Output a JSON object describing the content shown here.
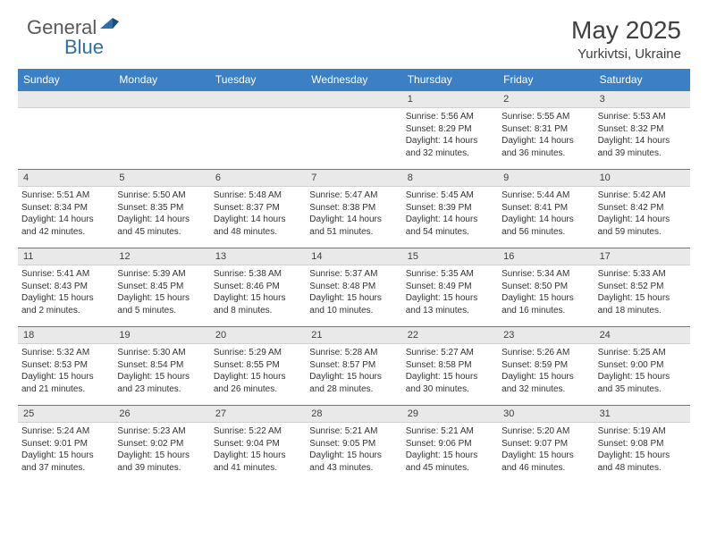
{
  "logo": {
    "text1": "General",
    "text2": "Blue"
  },
  "title": {
    "month": "May 2025",
    "location": "Yurkivtsi, Ukraine"
  },
  "dayNames": [
    "Sunday",
    "Monday",
    "Tuesday",
    "Wednesday",
    "Thursday",
    "Friday",
    "Saturday"
  ],
  "styling": {
    "headerBg": "#3b7fc4",
    "headerText": "#ffffff",
    "dateRowBg": "#e9e9e9",
    "dateRowBorderTop": "#4a80b8",
    "bodyText": "#333333",
    "titleColor": "#404040"
  },
  "weeks": [
    [
      {
        "date": "",
        "lines": []
      },
      {
        "date": "",
        "lines": []
      },
      {
        "date": "",
        "lines": []
      },
      {
        "date": "",
        "lines": []
      },
      {
        "date": "1",
        "lines": [
          "Sunrise: 5:56 AM",
          "Sunset: 8:29 PM",
          "Daylight: 14 hours and 32 minutes."
        ]
      },
      {
        "date": "2",
        "lines": [
          "Sunrise: 5:55 AM",
          "Sunset: 8:31 PM",
          "Daylight: 14 hours and 36 minutes."
        ]
      },
      {
        "date": "3",
        "lines": [
          "Sunrise: 5:53 AM",
          "Sunset: 8:32 PM",
          "Daylight: 14 hours and 39 minutes."
        ]
      }
    ],
    [
      {
        "date": "4",
        "lines": [
          "Sunrise: 5:51 AM",
          "Sunset: 8:34 PM",
          "Daylight: 14 hours and 42 minutes."
        ]
      },
      {
        "date": "5",
        "lines": [
          "Sunrise: 5:50 AM",
          "Sunset: 8:35 PM",
          "Daylight: 14 hours and 45 minutes."
        ]
      },
      {
        "date": "6",
        "lines": [
          "Sunrise: 5:48 AM",
          "Sunset: 8:37 PM",
          "Daylight: 14 hours and 48 minutes."
        ]
      },
      {
        "date": "7",
        "lines": [
          "Sunrise: 5:47 AM",
          "Sunset: 8:38 PM",
          "Daylight: 14 hours and 51 minutes."
        ]
      },
      {
        "date": "8",
        "lines": [
          "Sunrise: 5:45 AM",
          "Sunset: 8:39 PM",
          "Daylight: 14 hours and 54 minutes."
        ]
      },
      {
        "date": "9",
        "lines": [
          "Sunrise: 5:44 AM",
          "Sunset: 8:41 PM",
          "Daylight: 14 hours and 56 minutes."
        ]
      },
      {
        "date": "10",
        "lines": [
          "Sunrise: 5:42 AM",
          "Sunset: 8:42 PM",
          "Daylight: 14 hours and 59 minutes."
        ]
      }
    ],
    [
      {
        "date": "11",
        "lines": [
          "Sunrise: 5:41 AM",
          "Sunset: 8:43 PM",
          "Daylight: 15 hours and 2 minutes."
        ]
      },
      {
        "date": "12",
        "lines": [
          "Sunrise: 5:39 AM",
          "Sunset: 8:45 PM",
          "Daylight: 15 hours and 5 minutes."
        ]
      },
      {
        "date": "13",
        "lines": [
          "Sunrise: 5:38 AM",
          "Sunset: 8:46 PM",
          "Daylight: 15 hours and 8 minutes."
        ]
      },
      {
        "date": "14",
        "lines": [
          "Sunrise: 5:37 AM",
          "Sunset: 8:48 PM",
          "Daylight: 15 hours and 10 minutes."
        ]
      },
      {
        "date": "15",
        "lines": [
          "Sunrise: 5:35 AM",
          "Sunset: 8:49 PM",
          "Daylight: 15 hours and 13 minutes."
        ]
      },
      {
        "date": "16",
        "lines": [
          "Sunrise: 5:34 AM",
          "Sunset: 8:50 PM",
          "Daylight: 15 hours and 16 minutes."
        ]
      },
      {
        "date": "17",
        "lines": [
          "Sunrise: 5:33 AM",
          "Sunset: 8:52 PM",
          "Daylight: 15 hours and 18 minutes."
        ]
      }
    ],
    [
      {
        "date": "18",
        "lines": [
          "Sunrise: 5:32 AM",
          "Sunset: 8:53 PM",
          "Daylight: 15 hours and 21 minutes."
        ]
      },
      {
        "date": "19",
        "lines": [
          "Sunrise: 5:30 AM",
          "Sunset: 8:54 PM",
          "Daylight: 15 hours and 23 minutes."
        ]
      },
      {
        "date": "20",
        "lines": [
          "Sunrise: 5:29 AM",
          "Sunset: 8:55 PM",
          "Daylight: 15 hours and 26 minutes."
        ]
      },
      {
        "date": "21",
        "lines": [
          "Sunrise: 5:28 AM",
          "Sunset: 8:57 PM",
          "Daylight: 15 hours and 28 minutes."
        ]
      },
      {
        "date": "22",
        "lines": [
          "Sunrise: 5:27 AM",
          "Sunset: 8:58 PM",
          "Daylight: 15 hours and 30 minutes."
        ]
      },
      {
        "date": "23",
        "lines": [
          "Sunrise: 5:26 AM",
          "Sunset: 8:59 PM",
          "Daylight: 15 hours and 32 minutes."
        ]
      },
      {
        "date": "24",
        "lines": [
          "Sunrise: 5:25 AM",
          "Sunset: 9:00 PM",
          "Daylight: 15 hours and 35 minutes."
        ]
      }
    ],
    [
      {
        "date": "25",
        "lines": [
          "Sunrise: 5:24 AM",
          "Sunset: 9:01 PM",
          "Daylight: 15 hours and 37 minutes."
        ]
      },
      {
        "date": "26",
        "lines": [
          "Sunrise: 5:23 AM",
          "Sunset: 9:02 PM",
          "Daylight: 15 hours and 39 minutes."
        ]
      },
      {
        "date": "27",
        "lines": [
          "Sunrise: 5:22 AM",
          "Sunset: 9:04 PM",
          "Daylight: 15 hours and 41 minutes."
        ]
      },
      {
        "date": "28",
        "lines": [
          "Sunrise: 5:21 AM",
          "Sunset: 9:05 PM",
          "Daylight: 15 hours and 43 minutes."
        ]
      },
      {
        "date": "29",
        "lines": [
          "Sunrise: 5:21 AM",
          "Sunset: 9:06 PM",
          "Daylight: 15 hours and 45 minutes."
        ]
      },
      {
        "date": "30",
        "lines": [
          "Sunrise: 5:20 AM",
          "Sunset: 9:07 PM",
          "Daylight: 15 hours and 46 minutes."
        ]
      },
      {
        "date": "31",
        "lines": [
          "Sunrise: 5:19 AM",
          "Sunset: 9:08 PM",
          "Daylight: 15 hours and 48 minutes."
        ]
      }
    ]
  ]
}
